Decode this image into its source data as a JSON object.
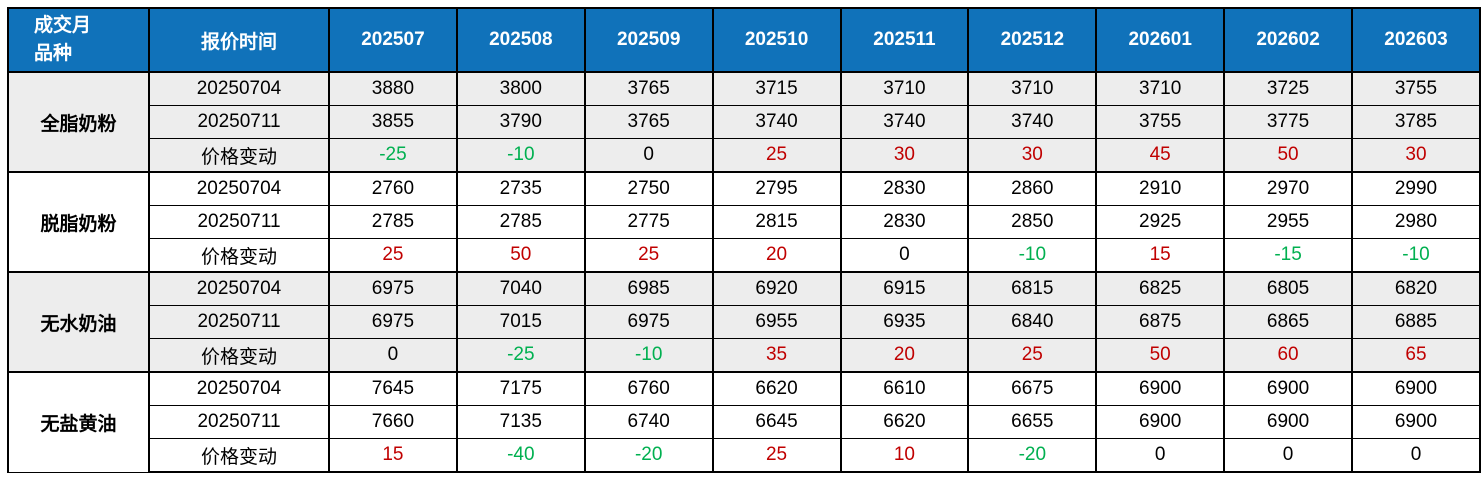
{
  "header": {
    "corner_line1": "成交月",
    "corner_line2": "品种",
    "quote_time_label": "报价时间",
    "months": [
      "202507",
      "202508",
      "202509",
      "202510",
      "202511",
      "202512",
      "202601",
      "202602",
      "202603"
    ]
  },
  "change_row_label": "价格变动",
  "colors": {
    "header_bg": "#1072BA",
    "header_text": "#FFFFFF",
    "row_bg": "#FFFFFF",
    "row_alt_bg": "#EDEDED",
    "positive_change": "#C00000",
    "negative_change": "#00B050",
    "zero_change": "#000000",
    "border": "#000000"
  },
  "groups": [
    {
      "product": "全脂奶粉",
      "shaded": true,
      "rows": [
        {
          "label": "20250704",
          "type": "price",
          "values": [
            3880,
            3800,
            3765,
            3715,
            3710,
            3710,
            3710,
            3725,
            3755
          ]
        },
        {
          "label": "20250711",
          "type": "price",
          "values": [
            3855,
            3790,
            3765,
            3740,
            3740,
            3740,
            3755,
            3775,
            3785
          ]
        },
        {
          "label": "价格变动",
          "type": "change",
          "values": [
            -25,
            -10,
            0,
            25,
            30,
            30,
            45,
            50,
            30
          ]
        }
      ]
    },
    {
      "product": "脱脂奶粉",
      "shaded": false,
      "rows": [
        {
          "label": "20250704",
          "type": "price",
          "values": [
            2760,
            2735,
            2750,
            2795,
            2830,
            2860,
            2910,
            2970,
            2990
          ]
        },
        {
          "label": "20250711",
          "type": "price",
          "values": [
            2785,
            2785,
            2775,
            2815,
            2830,
            2850,
            2925,
            2955,
            2980
          ]
        },
        {
          "label": "价格变动",
          "type": "change",
          "values": [
            25,
            50,
            25,
            20,
            0,
            -10,
            15,
            -15,
            -10
          ]
        }
      ]
    },
    {
      "product": "无水奶油",
      "shaded": true,
      "rows": [
        {
          "label": "20250704",
          "type": "price",
          "values": [
            6975,
            7040,
            6985,
            6920,
            6915,
            6815,
            6825,
            6805,
            6820
          ]
        },
        {
          "label": "20250711",
          "type": "price",
          "values": [
            6975,
            7015,
            6975,
            6955,
            6935,
            6840,
            6875,
            6865,
            6885
          ]
        },
        {
          "label": "价格变动",
          "type": "change",
          "values": [
            0,
            -25,
            -10,
            35,
            20,
            25,
            50,
            60,
            65
          ]
        }
      ]
    },
    {
      "product": "无盐黄油",
      "shaded": false,
      "rows": [
        {
          "label": "20250704",
          "type": "price",
          "values": [
            7645,
            7175,
            6760,
            6620,
            6610,
            6675,
            6900,
            6900,
            6900
          ]
        },
        {
          "label": "20250711",
          "type": "price",
          "values": [
            7660,
            7135,
            6740,
            6645,
            6620,
            6655,
            6900,
            6900,
            6900
          ]
        },
        {
          "label": "价格变动",
          "type": "change",
          "values": [
            15,
            -40,
            -20,
            25,
            10,
            -20,
            0,
            0,
            0
          ]
        }
      ]
    }
  ]
}
